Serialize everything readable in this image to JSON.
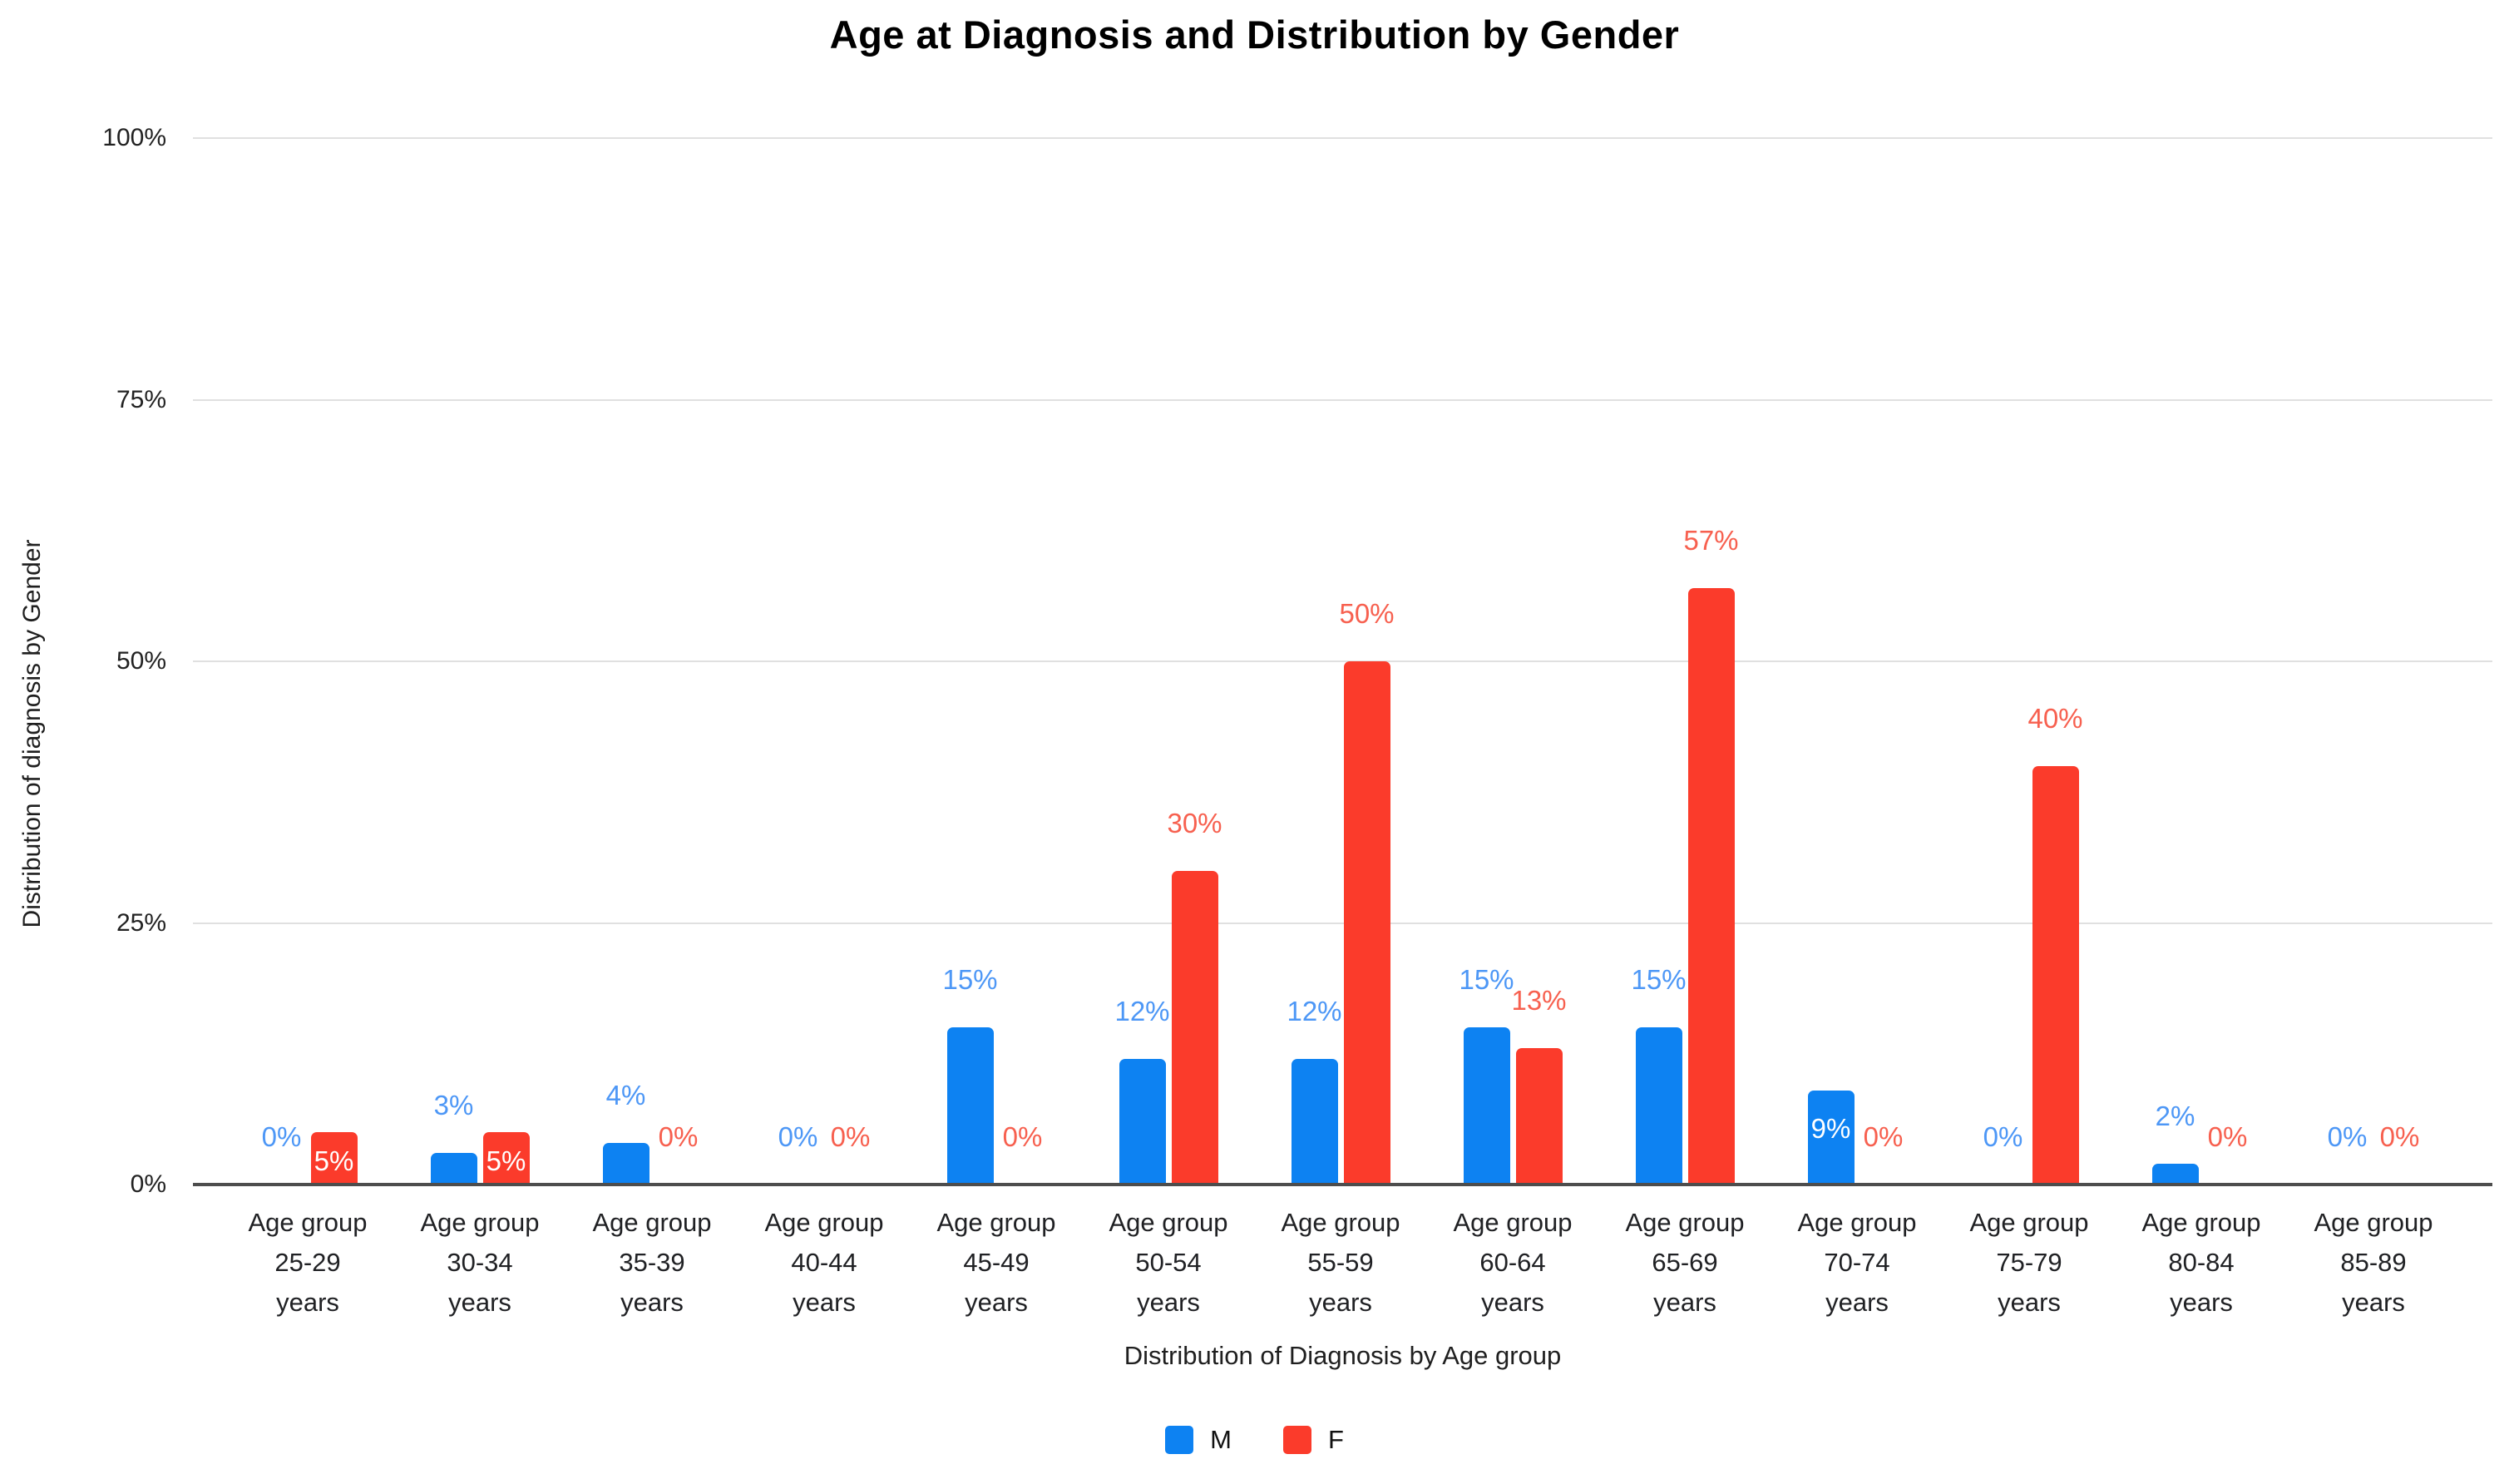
{
  "title": "Age at Diagnosis and Distribution by Gender",
  "y_axis": {
    "title": "Distribution of diagnosis by Gender",
    "tick_labels": [
      "0%",
      "25%",
      "50%",
      "75%",
      "100%"
    ]
  },
  "x_axis": {
    "title": "Distribution of Diagnosis by Age group"
  },
  "legend": {
    "items": [
      {
        "label": "M",
        "color": "#0d82f2"
      },
      {
        "label": "F",
        "color": "#fb3b2b"
      }
    ]
  },
  "chart_data": {
    "type": "bar",
    "title": "Age at Diagnosis and Distribution by Gender",
    "xlabel": "Distribution of Diagnosis by Age group",
    "ylabel": "Distribution of diagnosis by Gender",
    "ylim": [
      0,
      100
    ],
    "yticks": [
      0,
      25,
      50,
      75,
      100
    ],
    "grid": "horizontal",
    "legend_position": "bottom",
    "value_suffix": "%",
    "categories": [
      "Age group\n25-29\nyears",
      "Age group\n30-34\nyears",
      "Age group\n35-39\nyears",
      "Age group\n40-44\nyears",
      "Age group\n45-49\nyears",
      "Age group\n50-54\nyears",
      "Age group\n55-59\nyears",
      "Age group\n60-64\nyears",
      "Age group\n65-69\nyears",
      "Age group\n70-74\nyears",
      "Age group\n75-79\nyears",
      "Age group\n80-84\nyears",
      "Age group\n85-89\nyears"
    ],
    "series": [
      {
        "name": "M",
        "color": "#0d82f2",
        "label_color": "#4d97f6",
        "values": [
          0,
          3,
          4,
          0,
          15,
          12,
          12,
          15,
          15,
          9,
          0,
          2,
          0
        ],
        "labels_inside": [
          9
        ]
      },
      {
        "name": "F",
        "color": "#fb3b2b",
        "label_color": "#f7604f",
        "values": [
          5,
          5,
          0,
          0,
          0,
          30,
          50,
          13,
          57,
          0,
          40,
          0,
          0
        ],
        "labels_inside": [
          0,
          1
        ]
      }
    ]
  }
}
